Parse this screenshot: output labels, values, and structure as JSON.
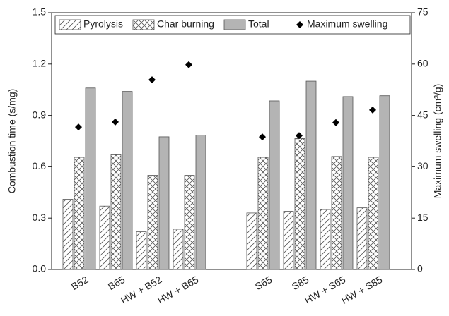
{
  "chart_data": {
    "type": "bar",
    "categories": [
      "B52",
      "B65",
      "HW + B52",
      "HW + B65",
      null,
      "S65",
      "S85",
      "HW + S65",
      "HW + S85"
    ],
    "series": [
      {
        "name": "Pyrolysis",
        "color": "#555555",
        "hatch": "diagonal",
        "values": [
          0.41,
          0.37,
          0.22,
          0.235,
          null,
          0.33,
          0.34,
          0.35,
          0.36
        ]
      },
      {
        "name": "Char burning",
        "color": "#555555",
        "hatch": "cross",
        "values": [
          0.655,
          0.67,
          0.55,
          0.55,
          null,
          0.655,
          0.765,
          0.66,
          0.655
        ]
      },
      {
        "name": "Total",
        "color": "#b4b4b4",
        "values": [
          1.06,
          1.04,
          0.775,
          0.785,
          null,
          0.985,
          1.1,
          1.01,
          1.015
        ]
      },
      {
        "name": "Maximum swelling",
        "color": "#000000",
        "type": "scatter",
        "axis": "y2",
        "values": [
          41.6,
          43.1,
          55.4,
          59.8,
          null,
          38.7,
          39.1,
          42.9,
          46.6
        ]
      }
    ],
    "y_label": "Combustion time (s/mg)",
    "y2_label": "Maximum swelling (cm³/g)",
    "ylim": [
      0,
      1.5
    ],
    "yticks": [
      {
        "value": 0,
        "label": "0.0"
      },
      0.3,
      0.6,
      0.9,
      1.2,
      1.5
    ],
    "y2lim": [
      0,
      75
    ],
    "y2ticks": [
      0,
      15,
      30,
      45,
      60,
      75
    ]
  }
}
